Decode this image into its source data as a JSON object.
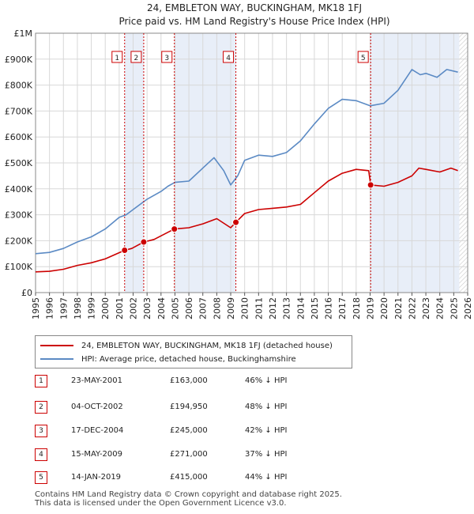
{
  "chart_data": {
    "type": "line",
    "title": [
      "24, EMBLETON WAY, BUCKINGHAM, MK18 1FJ",
      "Price paid vs. HM Land Registry's House Price Index (HPI)"
    ],
    "xlim": [
      1995,
      2026
    ],
    "ylim": [
      0,
      1000000
    ],
    "x_ticks": [
      "1995",
      "1996",
      "1997",
      "1998",
      "1999",
      "2000",
      "2001",
      "2002",
      "2003",
      "2004",
      "2005",
      "2006",
      "2007",
      "2008",
      "2009",
      "2010",
      "2011",
      "2012",
      "2013",
      "2014",
      "2015",
      "2016",
      "2017",
      "2018",
      "2019",
      "2020",
      "2021",
      "2022",
      "2023",
      "2024",
      "2025",
      "2026"
    ],
    "y_ticks": [
      {
        "value": 0,
        "label": "£0"
      },
      {
        "value": 100000,
        "label": "£100K"
      },
      {
        "value": 200000,
        "label": "£200K"
      },
      {
        "value": 300000,
        "label": "£300K"
      },
      {
        "value": 400000,
        "label": "£400K"
      },
      {
        "value": 500000,
        "label": "£500K"
      },
      {
        "value": 600000,
        "label": "£600K"
      },
      {
        "value": 700000,
        "label": "£700K"
      },
      {
        "value": 800000,
        "label": "£800K"
      },
      {
        "value": 900000,
        "label": "£900K"
      },
      {
        "value": 1000000,
        "label": "£1M"
      }
    ],
    "series": [
      {
        "name": "24, EMBLETON WAY, BUCKINGHAM, MK18 1FJ (detached house)",
        "color": "#cc0000",
        "points": [
          [
            1995,
            80000
          ],
          [
            1996,
            82000
          ],
          [
            1997,
            90000
          ],
          [
            1998,
            105000
          ],
          [
            1999,
            115000
          ],
          [
            2000,
            130000
          ],
          [
            2001.39,
            163000
          ],
          [
            2001.9,
            170000
          ],
          [
            2002.76,
            194950
          ],
          [
            2003.5,
            205000
          ],
          [
            2004.96,
            245000
          ],
          [
            2006,
            250000
          ],
          [
            2007,
            265000
          ],
          [
            2008,
            285000
          ],
          [
            2009.37,
            271000
          ],
          [
            2009.0,
            250000
          ],
          [
            2010,
            305000
          ],
          [
            2011,
            320000
          ],
          [
            2012,
            325000
          ],
          [
            2013,
            330000
          ],
          [
            2014,
            340000
          ],
          [
            2015,
            385000
          ],
          [
            2016,
            430000
          ],
          [
            2017,
            460000
          ],
          [
            2018,
            475000
          ],
          [
            2018.9,
            470000
          ],
          [
            2019.04,
            415000
          ],
          [
            2020,
            410000
          ],
          [
            2021,
            425000
          ],
          [
            2022,
            450000
          ],
          [
            2022.5,
            480000
          ],
          [
            2023,
            475000
          ],
          [
            2024,
            465000
          ],
          [
            2024.8,
            480000
          ],
          [
            2025.3,
            470000
          ]
        ]
      },
      {
        "name": "HPI: Average price, detached house, Buckinghamshire",
        "color": "#5b8ac4",
        "points": [
          [
            1995,
            150000
          ],
          [
            1996,
            155000
          ],
          [
            1997,
            170000
          ],
          [
            1998,
            195000
          ],
          [
            1999,
            215000
          ],
          [
            2000,
            245000
          ],
          [
            2001,
            290000
          ],
          [
            2001.5,
            300000
          ],
          [
            2002,
            320000
          ],
          [
            2003,
            360000
          ],
          [
            2004,
            390000
          ],
          [
            2004.5,
            410000
          ],
          [
            2005,
            425000
          ],
          [
            2006,
            430000
          ],
          [
            2007,
            480000
          ],
          [
            2007.8,
            520000
          ],
          [
            2008.5,
            470000
          ],
          [
            2009,
            415000
          ],
          [
            2009.5,
            450000
          ],
          [
            2010,
            510000
          ],
          [
            2011,
            530000
          ],
          [
            2012,
            525000
          ],
          [
            2013,
            540000
          ],
          [
            2014,
            585000
          ],
          [
            2015,
            650000
          ],
          [
            2016,
            710000
          ],
          [
            2017,
            745000
          ],
          [
            2018,
            740000
          ],
          [
            2019,
            720000
          ],
          [
            2020,
            730000
          ],
          [
            2021,
            780000
          ],
          [
            2022,
            860000
          ],
          [
            2022.6,
            840000
          ],
          [
            2023,
            845000
          ],
          [
            2023.8,
            830000
          ],
          [
            2024.5,
            860000
          ],
          [
            2025.3,
            850000
          ]
        ]
      }
    ],
    "sales": [
      {
        "num": "1",
        "x": 2001.39,
        "value": 163000,
        "date": "23-MAY-2001",
        "price": "£163,000",
        "hpi": "46% ↓ HPI"
      },
      {
        "num": "2",
        "x": 2002.76,
        "value": 194950,
        "date": "04-OCT-2002",
        "price": "£194,950",
        "hpi": "48% ↓ HPI"
      },
      {
        "num": "3",
        "x": 2004.96,
        "value": 245000,
        "date": "17-DEC-2004",
        "price": "£245,000",
        "hpi": "42% ↓ HPI"
      },
      {
        "num": "4",
        "x": 2009.37,
        "value": 271000,
        "date": "15-MAY-2009",
        "price": "£271,000",
        "hpi": "37% ↓ HPI"
      },
      {
        "num": "5",
        "x": 2019.04,
        "value": 415000,
        "date": "14-JAN-2019",
        "price": "£415,000",
        "hpi": "44% ↓ HPI"
      }
    ],
    "shaded_ranges": [
      [
        2001.39,
        2002.76
      ],
      [
        2004.96,
        2009.37
      ],
      [
        2019.04,
        2025.4
      ]
    ],
    "hatched_after": 2025.4
  },
  "legend": {
    "property": "24, EMBLETON WAY, BUCKINGHAM, MK18 1FJ (detached house)",
    "hpi": "HPI: Average price, detached house, Buckinghamshire"
  },
  "footer": {
    "line1": "Contains HM Land Registry data © Crown copyright and database right 2025.",
    "line2": "This data is licensed under the Open Government Licence v3.0."
  }
}
